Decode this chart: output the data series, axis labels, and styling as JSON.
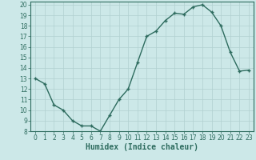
{
  "title": "",
  "xlabel": "Humidex (Indice chaleur)",
  "x": [
    0,
    1,
    2,
    3,
    4,
    5,
    6,
    7,
    8,
    9,
    10,
    11,
    12,
    13,
    14,
    15,
    16,
    17,
    18,
    19,
    20,
    21,
    22,
    23
  ],
  "y": [
    13.0,
    12.5,
    10.5,
    10.0,
    9.0,
    8.5,
    8.5,
    8.0,
    9.5,
    11.0,
    12.0,
    14.5,
    17.0,
    17.5,
    18.5,
    19.2,
    19.1,
    19.8,
    20.0,
    19.3,
    18.0,
    15.5,
    13.7,
    13.8
  ],
  "ylim": [
    8,
    20
  ],
  "xlim": [
    -0.5,
    23.5
  ],
  "yticks": [
    8,
    9,
    10,
    11,
    12,
    13,
    14,
    15,
    16,
    17,
    18,
    19,
    20
  ],
  "xticks": [
    0,
    1,
    2,
    3,
    4,
    5,
    6,
    7,
    8,
    9,
    10,
    11,
    12,
    13,
    14,
    15,
    16,
    17,
    18,
    19,
    20,
    21,
    22,
    23
  ],
  "line_color": "#2d6b5e",
  "marker": "+",
  "marker_size": 3,
  "bg_color": "#cce8e8",
  "grid_color": "#b0d0d0",
  "tick_fontsize": 5.5,
  "xlabel_fontsize": 7,
  "line_width": 1.0,
  "spine_color": "#2d6b5e"
}
